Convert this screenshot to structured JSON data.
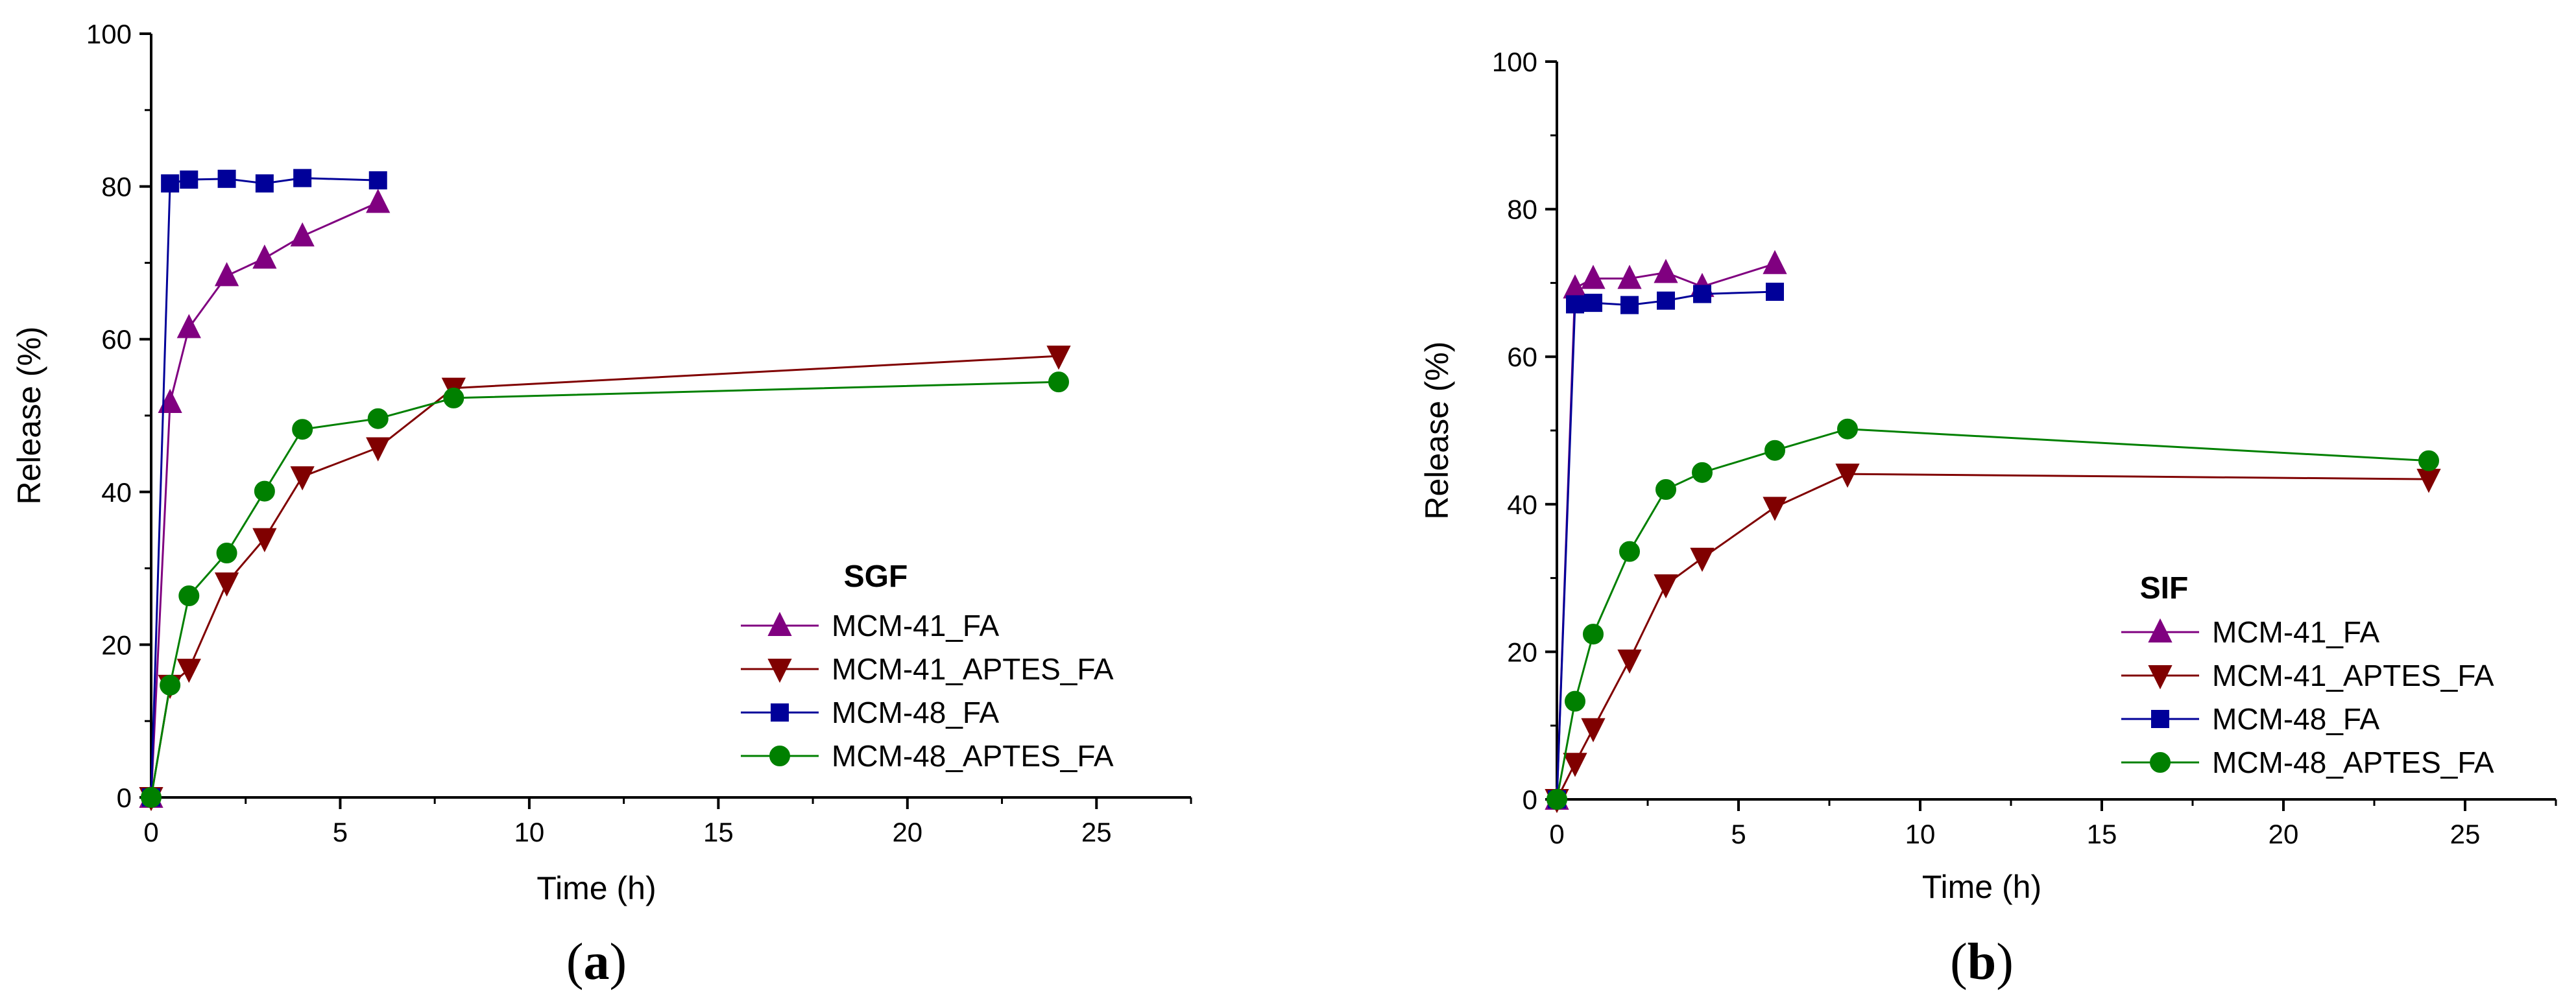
{
  "chart_data": [
    {
      "type": "line",
      "panel_label": "a",
      "xlabel": "Time (h)",
      "ylabel": "Release (%)",
      "xlim": [
        0,
        27.5
      ],
      "ylim": [
        0,
        100
      ],
      "xticks": [
        "0",
        "5",
        "10",
        "15",
        "20",
        "25"
      ],
      "yticks": [
        "0",
        "20",
        "40",
        "60",
        "80",
        "100"
      ],
      "legend_title": "SGF",
      "legend_position": "bottom-right",
      "series": [
        {
          "name": "MCM-41_FA",
          "color": "#800080",
          "marker": "triangle-up",
          "x": [
            0,
            0.5,
            1,
            2,
            3,
            4,
            6
          ],
          "y": [
            0,
            51.7,
            61.5,
            68.3,
            70.6,
            73.5,
            77.9
          ]
        },
        {
          "name": "MCM-41_APTES_FA",
          "color": "#800000",
          "marker": "triangle-down",
          "x": [
            0,
            0.5,
            1,
            2,
            3,
            4,
            6,
            8,
            24
          ],
          "y": [
            0,
            14.7,
            16.8,
            28.1,
            33.9,
            42.0,
            45.8,
            53.6,
            57.8
          ]
        },
        {
          "name": "MCM-48_FA",
          "color": "#000099",
          "marker": "square",
          "x": [
            0,
            0.5,
            1,
            2,
            3,
            4,
            6
          ],
          "y": [
            0,
            80.4,
            80.9,
            81.0,
            80.4,
            81.1,
            80.8
          ]
        },
        {
          "name": "MCM-48_APTES_FA",
          "color": "#008000",
          "marker": "circle",
          "x": [
            0,
            0.5,
            1,
            2,
            3,
            4,
            6,
            8,
            24
          ],
          "y": [
            0,
            14.7,
            26.4,
            32.0,
            40.1,
            48.2,
            49.6,
            52.3,
            54.4
          ]
        }
      ]
    },
    {
      "type": "line",
      "panel_label": "b",
      "xlabel": "Time (h)",
      "ylabel": "Release (%)",
      "xlim": [
        0,
        27.5
      ],
      "ylim": [
        0,
        100
      ],
      "xticks": [
        "0",
        "5",
        "10",
        "15",
        "20",
        "25"
      ],
      "yticks": [
        "0",
        "20",
        "40",
        "60",
        "80",
        "100"
      ],
      "legend_title": "SIF",
      "legend_position": "bottom-right",
      "series": [
        {
          "name": "MCM-41_FA",
          "color": "#800080",
          "marker": "triangle-up",
          "x": [
            0,
            0.5,
            1,
            2,
            3,
            4,
            6
          ],
          "y": [
            0,
            69.3,
            70.6,
            70.6,
            71.4,
            69.5,
            72.6
          ]
        },
        {
          "name": "MCM-41_APTES_FA",
          "color": "#800000",
          "marker": "triangle-down",
          "x": [
            0,
            0.5,
            1,
            2,
            3,
            4,
            6,
            8,
            24
          ],
          "y": [
            0,
            4.9,
            9.6,
            18.9,
            29.1,
            32.7,
            39.6,
            44.1,
            43.4
          ]
        },
        {
          "name": "MCM-48_FA",
          "color": "#000099",
          "marker": "square",
          "x": [
            0,
            0.5,
            1,
            2,
            3,
            4,
            6
          ],
          "y": [
            0,
            67.1,
            67.3,
            67.0,
            67.6,
            68.5,
            68.8
          ]
        },
        {
          "name": "MCM-48_APTES_FA",
          "color": "#008000",
          "marker": "circle",
          "x": [
            0,
            0.5,
            1,
            2,
            3,
            4,
            6,
            8,
            24
          ],
          "y": [
            0,
            13.3,
            22.4,
            33.6,
            42.0,
            44.3,
            47.3,
            50.2,
            45.9
          ]
        }
      ]
    }
  ]
}
